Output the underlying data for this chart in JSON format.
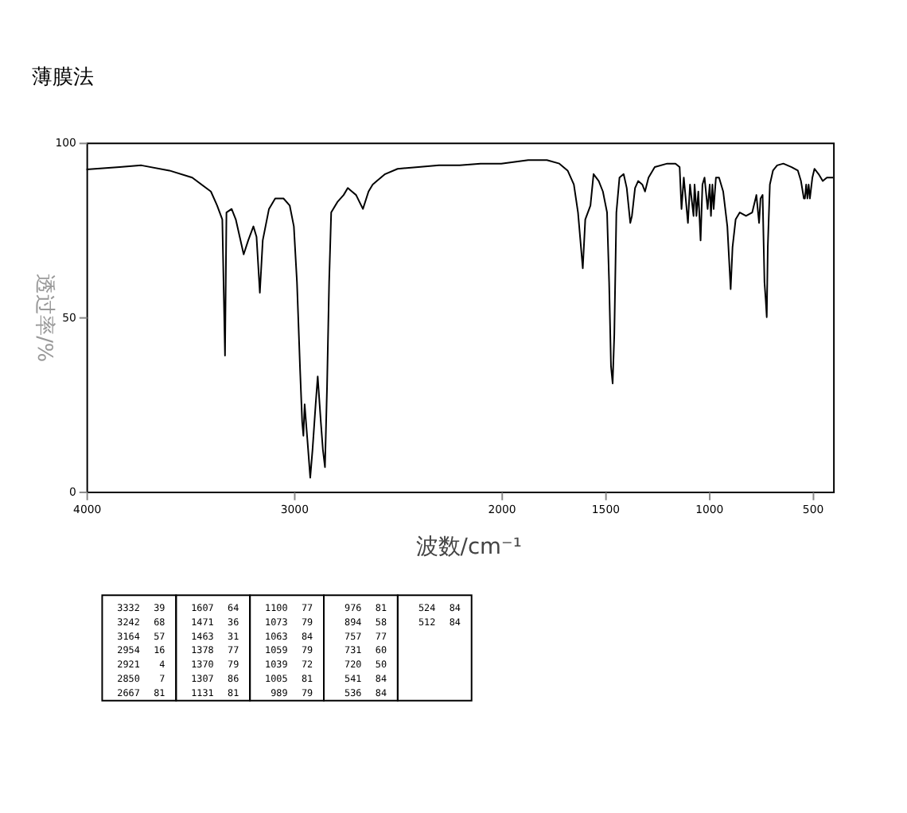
{
  "chart_data": {
    "type": "line",
    "title": "薄膜法",
    "xlabel": "波数/cm⁻¹",
    "ylabel": "透过率/%",
    "color": "#000000",
    "x": [
      4000,
      3840,
      3735,
      3600,
      3490,
      3400,
      3370,
      3345,
      3332,
      3325,
      3300,
      3280,
      3242,
      3220,
      3195,
      3180,
      3164,
      3150,
      3120,
      3090,
      3050,
      3020,
      3000,
      2985,
      2970,
      2960,
      2954,
      2948,
      2935,
      2921,
      2910,
      2895,
      2885,
      2870,
      2860,
      2850,
      2840,
      2830,
      2820,
      2790,
      2760,
      2740,
      2720,
      2700,
      2667,
      2640,
      2620,
      2600,
      2560,
      2500,
      2400,
      2300,
      2200,
      2100,
      2000,
      1870,
      1780,
      1720,
      1680,
      1650,
      1630,
      1607,
      1595,
      1570,
      1555,
      1530,
      1510,
      1490,
      1480,
      1471,
      1463,
      1455,
      1445,
      1430,
      1410,
      1395,
      1378,
      1370,
      1355,
      1340,
      1320,
      1307,
      1290,
      1260,
      1200,
      1160,
      1140,
      1131,
      1120,
      1100,
      1090,
      1073,
      1068,
      1063,
      1059,
      1050,
      1039,
      1030,
      1020,
      1005,
      995,
      989,
      982,
      976,
      965,
      950,
      930,
      910,
      894,
      885,
      870,
      850,
      820,
      790,
      770,
      757,
      750,
      740,
      731,
      725,
      720,
      715,
      705,
      690,
      670,
      640,
      600,
      570,
      555,
      541,
      536,
      530,
      524,
      518,
      512,
      500,
      490,
      470,
      450,
      430,
      400
    ],
    "values": [
      92.3,
      93,
      93.5,
      92,
      90,
      86,
      82,
      78,
      39,
      80,
      81,
      78,
      68,
      72,
      76,
      73,
      57,
      72,
      81,
      84,
      84,
      82,
      76,
      60,
      35,
      20,
      16,
      25,
      15,
      4,
      12,
      25,
      33,
      20,
      12,
      7,
      30,
      60,
      80,
      83,
      85,
      87,
      86,
      85,
      81,
      86,
      88,
      89,
      91,
      92.5,
      93,
      93.5,
      93.5,
      94,
      94,
      95,
      95,
      94,
      92,
      88,
      80,
      64,
      78,
      82,
      91,
      89,
      86,
      80,
      60,
      36,
      31,
      45,
      80,
      90,
      91,
      87,
      77,
      79,
      87,
      89,
      88,
      86,
      90,
      93,
      94,
      94,
      93,
      81,
      90,
      77,
      88,
      79,
      88,
      84,
      79,
      86,
      72,
      88,
      90,
      81,
      88,
      79,
      88,
      81,
      90,
      90,
      86,
      76,
      58,
      70,
      78,
      80,
      79,
      80,
      85,
      77,
      84,
      85,
      60,
      55,
      50,
      70,
      88,
      92,
      93.5,
      94,
      93,
      92,
      89,
      84,
      84,
      88,
      84,
      88,
      84,
      90,
      92.5,
      91,
      89,
      90,
      90
    ],
    "xlim": [
      4000,
      400
    ],
    "xticks": [
      4000,
      3000,
      2000,
      1500,
      1000,
      500
    ],
    "ylim": [
      0,
      100
    ],
    "yticks": [
      0,
      50,
      100
    ],
    "grid": false,
    "annotations": [
      "3332 39",
      "3242 68",
      "3164 57",
      "2954 16",
      "2921 4",
      "2850 7",
      "2667 81",
      "1607 64",
      "1471 36",
      "1463 31",
      "1378 77",
      "1370 79",
      "1307 86",
      "1131 81",
      "1100 77",
      "1073 79",
      "1063 84",
      "1059 79",
      "1039 72",
      "1005 81",
      "989 79",
      "976 81",
      "894 58",
      "757 77",
      "731 60",
      "720 50",
      "541 84",
      "536 84",
      "524 84",
      "512 84"
    ]
  }
}
